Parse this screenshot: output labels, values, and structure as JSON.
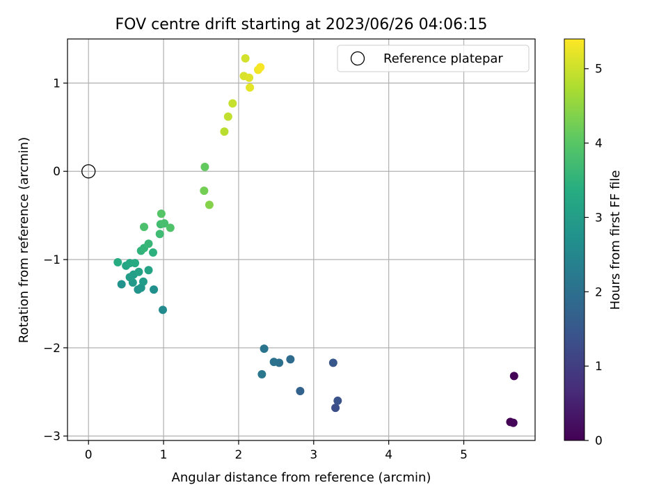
{
  "chart_data": {
    "type": "scatter",
    "title": "FOV centre drift starting at 2023/06/26 04:06:15",
    "xlabel": "Angular distance from reference (arcmin)",
    "ylabel": "Rotation from reference (arcmin)",
    "xlim": [
      -0.28,
      5.95
    ],
    "ylim": [
      -3.05,
      1.5
    ],
    "xticks": [
      0,
      1,
      2,
      3,
      4,
      5
    ],
    "yticks": [
      -3,
      -2,
      -1,
      0,
      1
    ],
    "grid": true,
    "legend": {
      "position": "top-right",
      "entries": [
        "Reference platepar"
      ]
    },
    "reference_point": {
      "x": 0,
      "y": 0,
      "label": "Reference platepar",
      "marker": "open-circle"
    },
    "colorbar": {
      "label": "Hours from first FF file",
      "range": [
        0,
        5.4
      ],
      "ticks": [
        0,
        1,
        2,
        3,
        4,
        5
      ],
      "colormap": "viridis"
    },
    "points": [
      {
        "x": 5.67,
        "y": -2.32,
        "c": 0.05
      },
      {
        "x": 5.62,
        "y": -2.84,
        "c": 0.0
      },
      {
        "x": 5.66,
        "y": -2.85,
        "c": 0.1
      },
      {
        "x": 3.29,
        "y": -2.68,
        "c": 1.3
      },
      {
        "x": 3.32,
        "y": -2.6,
        "c": 1.4
      },
      {
        "x": 3.26,
        "y": -2.17,
        "c": 1.5
      },
      {
        "x": 2.82,
        "y": -2.49,
        "c": 1.7
      },
      {
        "x": 2.69,
        "y": -2.13,
        "c": 1.9
      },
      {
        "x": 2.54,
        "y": -2.17,
        "c": 2.0
      },
      {
        "x": 2.47,
        "y": -2.16,
        "c": 2.05
      },
      {
        "x": 2.34,
        "y": -2.01,
        "c": 2.1
      },
      {
        "x": 2.31,
        "y": -2.3,
        "c": 2.15
      },
      {
        "x": 0.99,
        "y": -1.57,
        "c": 2.6
      },
      {
        "x": 0.87,
        "y": -1.34,
        "c": 2.7
      },
      {
        "x": 0.44,
        "y": -1.28,
        "c": 2.75
      },
      {
        "x": 0.66,
        "y": -1.34,
        "c": 2.8
      },
      {
        "x": 0.7,
        "y": -1.32,
        "c": 2.85
      },
      {
        "x": 0.59,
        "y": -1.26,
        "c": 2.9
      },
      {
        "x": 0.73,
        "y": -1.25,
        "c": 2.95
      },
      {
        "x": 0.55,
        "y": -1.2,
        "c": 3.0
      },
      {
        "x": 0.6,
        "y": -1.17,
        "c": 3.05
      },
      {
        "x": 0.67,
        "y": -1.14,
        "c": 3.1
      },
      {
        "x": 0.8,
        "y": -1.12,
        "c": 3.15
      },
      {
        "x": 0.5,
        "y": -1.07,
        "c": 3.2
      },
      {
        "x": 0.55,
        "y": -1.04,
        "c": 3.25
      },
      {
        "x": 0.62,
        "y": -1.04,
        "c": 3.3
      },
      {
        "x": 0.39,
        "y": -1.03,
        "c": 3.35
      },
      {
        "x": 0.86,
        "y": -0.92,
        "c": 3.45
      },
      {
        "x": 0.7,
        "y": -0.9,
        "c": 3.5
      },
      {
        "x": 0.74,
        "y": -0.87,
        "c": 3.55
      },
      {
        "x": 0.8,
        "y": -0.82,
        "c": 3.6
      },
      {
        "x": 0.95,
        "y": -0.71,
        "c": 3.7
      },
      {
        "x": 0.96,
        "y": -0.6,
        "c": 3.75
      },
      {
        "x": 1.01,
        "y": -0.59,
        "c": 3.8
      },
      {
        "x": 0.74,
        "y": -0.63,
        "c": 3.85
      },
      {
        "x": 1.09,
        "y": -0.64,
        "c": 3.9
      },
      {
        "x": 0.97,
        "y": -0.48,
        "c": 3.95
      },
      {
        "x": 1.55,
        "y": 0.05,
        "c": 4.1
      },
      {
        "x": 1.54,
        "y": -0.22,
        "c": 4.25
      },
      {
        "x": 1.61,
        "y": -0.38,
        "c": 4.4
      },
      {
        "x": 1.81,
        "y": 0.45,
        "c": 4.85
      },
      {
        "x": 1.86,
        "y": 0.62,
        "c": 4.9
      },
      {
        "x": 1.92,
        "y": 0.77,
        "c": 4.95
      },
      {
        "x": 2.09,
        "y": 1.28,
        "c": 5.05
      },
      {
        "x": 2.07,
        "y": 1.08,
        "c": 5.1
      },
      {
        "x": 2.14,
        "y": 1.06,
        "c": 5.15
      },
      {
        "x": 2.15,
        "y": 0.95,
        "c": 5.2
      },
      {
        "x": 2.26,
        "y": 1.15,
        "c": 5.3
      },
      {
        "x": 2.29,
        "y": 1.18,
        "c": 5.35
      }
    ]
  }
}
